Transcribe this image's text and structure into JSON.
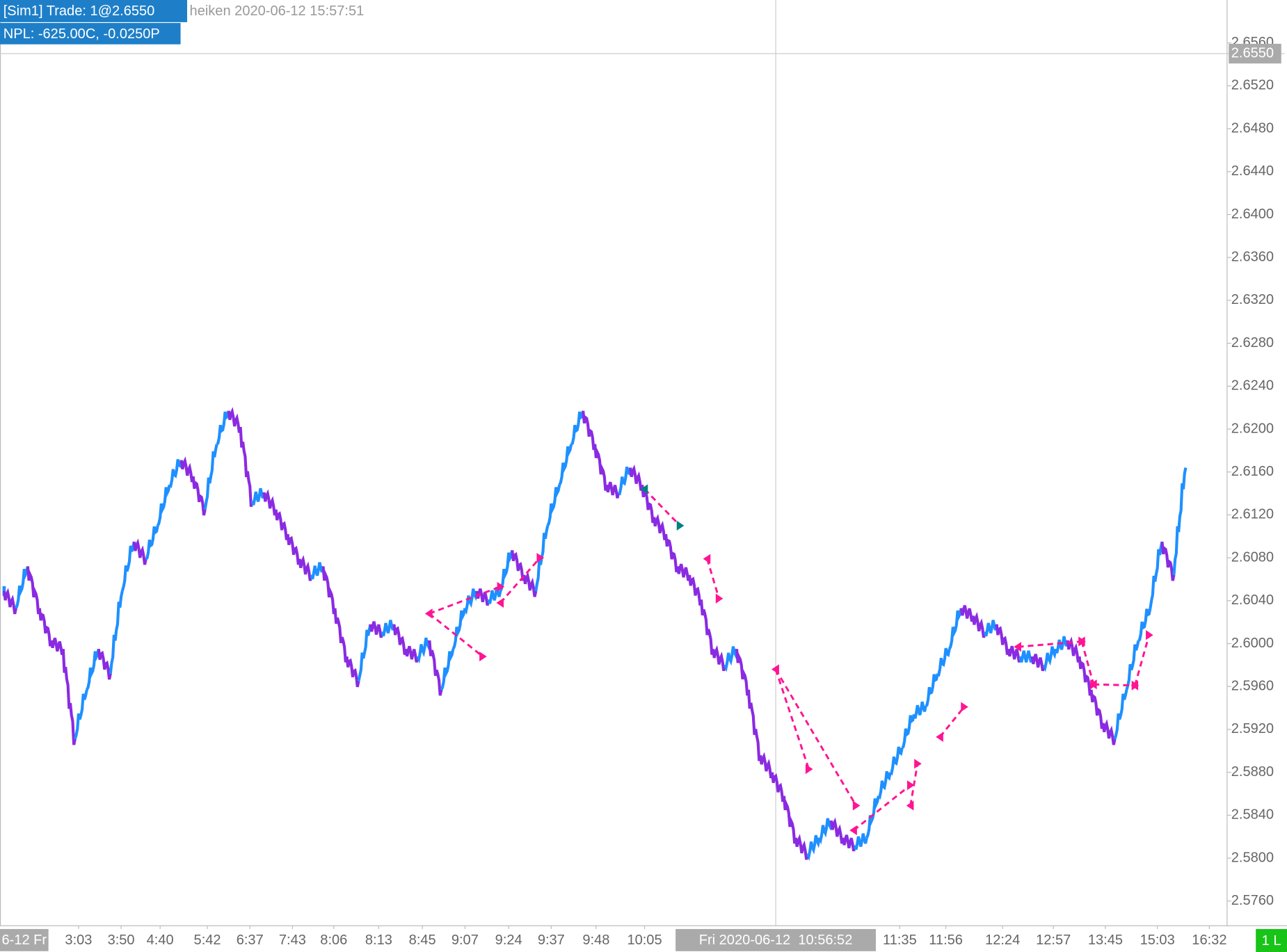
{
  "chart_data": {
    "type": "heiken",
    "header": {
      "account": "[Sim1]  Trade: 1@2.6550",
      "info": "heiken 2020-06-12 15:57:51",
      "pnl": "NPL: -625.00C, -0.0250P"
    },
    "up_color": "#1e90ff",
    "down_color": "#8a2be2",
    "values": [
      2.6049,
      2.6033,
      2.6072,
      2.6033,
      2.6003,
      2.5995,
      2.5911,
      2.5957,
      2.5995,
      2.5972,
      2.6049,
      2.6095,
      2.6079,
      2.611,
      2.6148,
      2.6171,
      2.6156,
      2.6125,
      2.6186,
      2.6217,
      2.6202,
      2.6133,
      2.6141,
      2.6125,
      2.6102,
      2.6079,
      2.6064,
      2.6072,
      2.6033,
      2.5988,
      2.5965,
      2.6018,
      2.6011,
      2.6018,
      2.5995,
      2.5988,
      2.6003,
      2.5957,
      2.5995,
      2.6033,
      2.6049,
      2.6041,
      2.6049,
      2.6087,
      2.6064,
      2.6049,
      2.611,
      2.6148,
      2.6186,
      2.6217,
      2.6186,
      2.6148,
      2.6141,
      2.6164,
      2.6148,
      2.6118,
      2.6102,
      2.6072,
      2.6064,
      2.6041,
      2.5995,
      2.598,
      2.5995,
      2.5957,
      2.5896,
      2.588,
      2.5858,
      2.5819,
      2.5804,
      2.5819,
      2.5835,
      2.5819,
      2.5812,
      2.5819,
      2.5858,
      2.588,
      2.5903,
      2.5934,
      2.5942,
      2.5972,
      2.5995,
      2.6033,
      2.6026,
      2.6011,
      2.6018,
      2.5995,
      2.5988,
      2.5988,
      2.598,
      2.5995,
      2.6003,
      2.5988,
      2.5957,
      2.5926,
      2.5911,
      2.5957,
      2.6003,
      2.6033,
      2.6095,
      2.6064,
      2.6164
    ],
    "xlim": [
      -0.35,
      103.5
    ],
    "ylim": [
      2.5737,
      2.66
    ],
    "yticks": [
      {
        "value": 2.656,
        "label": "2.6560"
      },
      {
        "value": 2.652,
        "label": "2.6520"
      },
      {
        "value": 2.648,
        "label": "2.6480"
      },
      {
        "value": 2.644,
        "label": "2.6440"
      },
      {
        "value": 2.64,
        "label": "2.6400"
      },
      {
        "value": 2.636,
        "label": "2.6360"
      },
      {
        "value": 2.632,
        "label": "2.6320"
      },
      {
        "value": 2.628,
        "label": "2.6280"
      },
      {
        "value": 2.624,
        "label": "2.6240"
      },
      {
        "value": 2.62,
        "label": "2.6200"
      },
      {
        "value": 2.616,
        "label": "2.6160"
      },
      {
        "value": 2.612,
        "label": "2.6120"
      },
      {
        "value": 2.608,
        "label": "2.6080"
      },
      {
        "value": 2.604,
        "label": "2.6040"
      },
      {
        "value": 2.6,
        "label": "2.6000"
      },
      {
        "value": 2.596,
        "label": "2.5960"
      },
      {
        "value": 2.592,
        "label": "2.5920"
      },
      {
        "value": 2.588,
        "label": "2.5880"
      },
      {
        "value": 2.584,
        "label": "2.5840"
      },
      {
        "value": 2.58,
        "label": "2.5800"
      },
      {
        "value": 2.576,
        "label": "2.5760"
      }
    ],
    "session_label": {
      "value": 1.7,
      "label": "6-12 Fr"
    },
    "xticks": [
      {
        "value": 6.3,
        "label": "3:03"
      },
      {
        "value": 9.9,
        "label": "3:50"
      },
      {
        "value": 13.2,
        "label": "4:40"
      },
      {
        "value": 17.2,
        "label": "5:42"
      },
      {
        "value": 20.8,
        "label": "6:37"
      },
      {
        "value": 24.4,
        "label": "7:43"
      },
      {
        "value": 27.9,
        "label": "8:06"
      },
      {
        "value": 31.7,
        "label": "8:13"
      },
      {
        "value": 35.4,
        "label": "8:45"
      },
      {
        "value": 39,
        "label": "9:07"
      },
      {
        "value": 42.7,
        "label": "9:24"
      },
      {
        "value": 46.3,
        "label": "9:37"
      },
      {
        "value": 50.1,
        "label": "9:48"
      },
      {
        "value": 54.2,
        "label": "10:05"
      },
      {
        "value": 75.8,
        "label": "11:35"
      },
      {
        "value": 79.7,
        "label": "11:56"
      },
      {
        "value": 84.5,
        "label": "12:24"
      },
      {
        "value": 88.8,
        "label": "12:57"
      },
      {
        "value": 93.2,
        "label": "13:45"
      },
      {
        "value": 97.6,
        "label": "15:03"
      },
      {
        "value": 102,
        "label": "16:32"
      }
    ],
    "crosshair": {
      "x": 65.3,
      "x_label": "Fri 2020-06-12  10:56:52",
      "price": 2.655,
      "price_label": "2.6550"
    },
    "trade_color": "#ff1493",
    "stop_color": "#008080",
    "trades": [
      {
        "x": [
          35.97,
          40.5
        ],
        "y": [
          2.6028,
          2.5988
        ]
      },
      {
        "x": [
          35.97,
          42.0
        ],
        "y": [
          2.6028,
          2.6053
        ]
      },
      {
        "x": [
          42.0,
          45.35
        ],
        "y": [
          2.6038,
          2.608
        ]
      },
      {
        "x": [
          54.2,
          57.2
        ],
        "y": [
          2.6144,
          2.611
        ],
        "stop": true
      },
      {
        "x": [
          59.5,
          60.5
        ],
        "y": [
          2.6079,
          2.6042
        ]
      },
      {
        "x": [
          65.3,
          68.1
        ],
        "y": [
          2.5976,
          2.5883
        ]
      },
      {
        "x": [
          65.3,
          72.1
        ],
        "y": [
          2.5976,
          2.5849
        ]
      },
      {
        "x": [
          71.9,
          76.7
        ],
        "y": [
          2.5826,
          2.5868
        ]
      },
      {
        "x": [
          76.7,
          77.3
        ],
        "y": [
          2.5849,
          2.5888
        ]
      },
      {
        "x": [
          79.2,
          81.25
        ],
        "y": [
          2.5913,
          2.5941
        ]
      },
      {
        "x": [
          85.8,
          91.2
        ],
        "y": [
          2.5997,
          2.6002
        ]
      },
      {
        "x": [
          91.2,
          92.2
        ],
        "y": [
          2.6002,
          2.5962
        ]
      },
      {
        "x": [
          92.2,
          95.7
        ],
        "y": [
          2.5962,
          2.5961
        ]
      },
      {
        "x": [
          95.7,
          96.9
        ],
        "y": [
          2.5961,
          2.6008
        ]
      }
    ],
    "position_label": "1 L"
  }
}
